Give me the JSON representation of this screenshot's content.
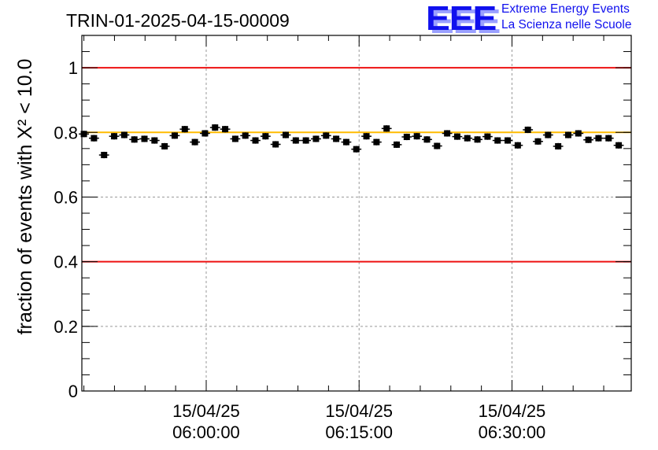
{
  "title": "TRIN-01-2025-04-15-00009",
  "logo": {
    "letters": "EEE",
    "line1": "Extreme Energy Events",
    "line2": "La Scienza nelle Scuole",
    "color": "#1010ee"
  },
  "chart_data": {
    "type": "scatter",
    "title": "TRIN-01-2025-04-15-00009",
    "xlabel": "",
    "ylabel": "fraction of events with X² < 10.0",
    "ylim": [
      0,
      1.1
    ],
    "xlim_minutes": [
      -12.2,
      41.7
    ],
    "grid": true,
    "y_ticks": [
      "0",
      "0.2",
      "0.4",
      "0.6",
      "0.8",
      "1"
    ],
    "x_ticks": [
      {
        "minute": 0,
        "date": "15/04/25",
        "time": "06:00:00"
      },
      {
        "minute": 15,
        "date": "15/04/25",
        "time": "06:15:00"
      },
      {
        "minute": 30,
        "date": "15/04/25",
        "time": "06:30:00"
      }
    ],
    "reference_lines": [
      {
        "y": 1.0,
        "color": "#ee1111"
      },
      {
        "y": 0.4,
        "color": "#ee1111"
      },
      {
        "y": 0.8,
        "color": "#ffbb00"
      }
    ],
    "x_start_minute": -12.0,
    "x_step_minute": 0.99,
    "y_error": 0.01,
    "values": [
      0.795,
      0.782,
      0.73,
      0.788,
      0.792,
      0.778,
      0.78,
      0.775,
      0.757,
      0.79,
      0.81,
      0.77,
      0.797,
      0.815,
      0.81,
      0.78,
      0.79,
      0.775,
      0.788,
      0.763,
      0.792,
      0.775,
      0.775,
      0.78,
      0.79,
      0.78,
      0.77,
      0.748,
      0.788,
      0.77,
      0.812,
      0.762,
      0.786,
      0.788,
      0.778,
      0.758,
      0.797,
      0.787,
      0.782,
      0.778,
      0.787,
      0.775,
      0.775,
      0.76,
      0.808,
      0.772,
      0.792,
      0.757,
      0.792,
      0.797,
      0.777,
      0.782,
      0.782,
      0.76
    ]
  }
}
